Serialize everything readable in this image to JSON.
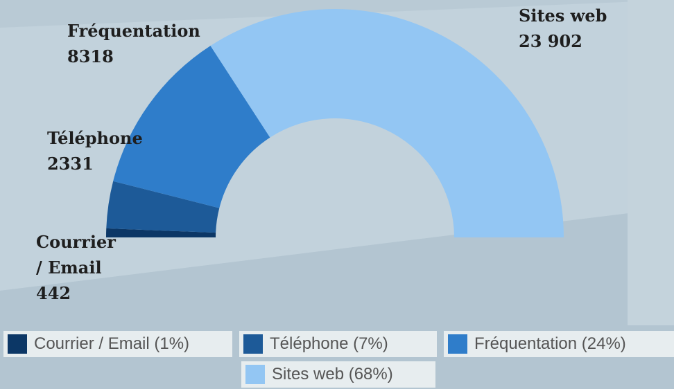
{
  "chart_data": {
    "type": "half-donut",
    "categories": [
      "Courrier / Email",
      "Téléphone",
      "Fréquentation",
      "Sites web"
    ],
    "values": [
      442,
      2331,
      8318,
      23902
    ],
    "value_labels": [
      "442",
      "2331",
      "8318",
      "23 902"
    ],
    "colors": [
      "#0c3766",
      "#1d5a98",
      "#2f7dca",
      "#93c6f3"
    ],
    "legend": [
      "Courrier / Email (1%)",
      "Téléphone (7%)",
      "Fréquentation (24%)",
      "Sites web (68%)"
    ]
  }
}
